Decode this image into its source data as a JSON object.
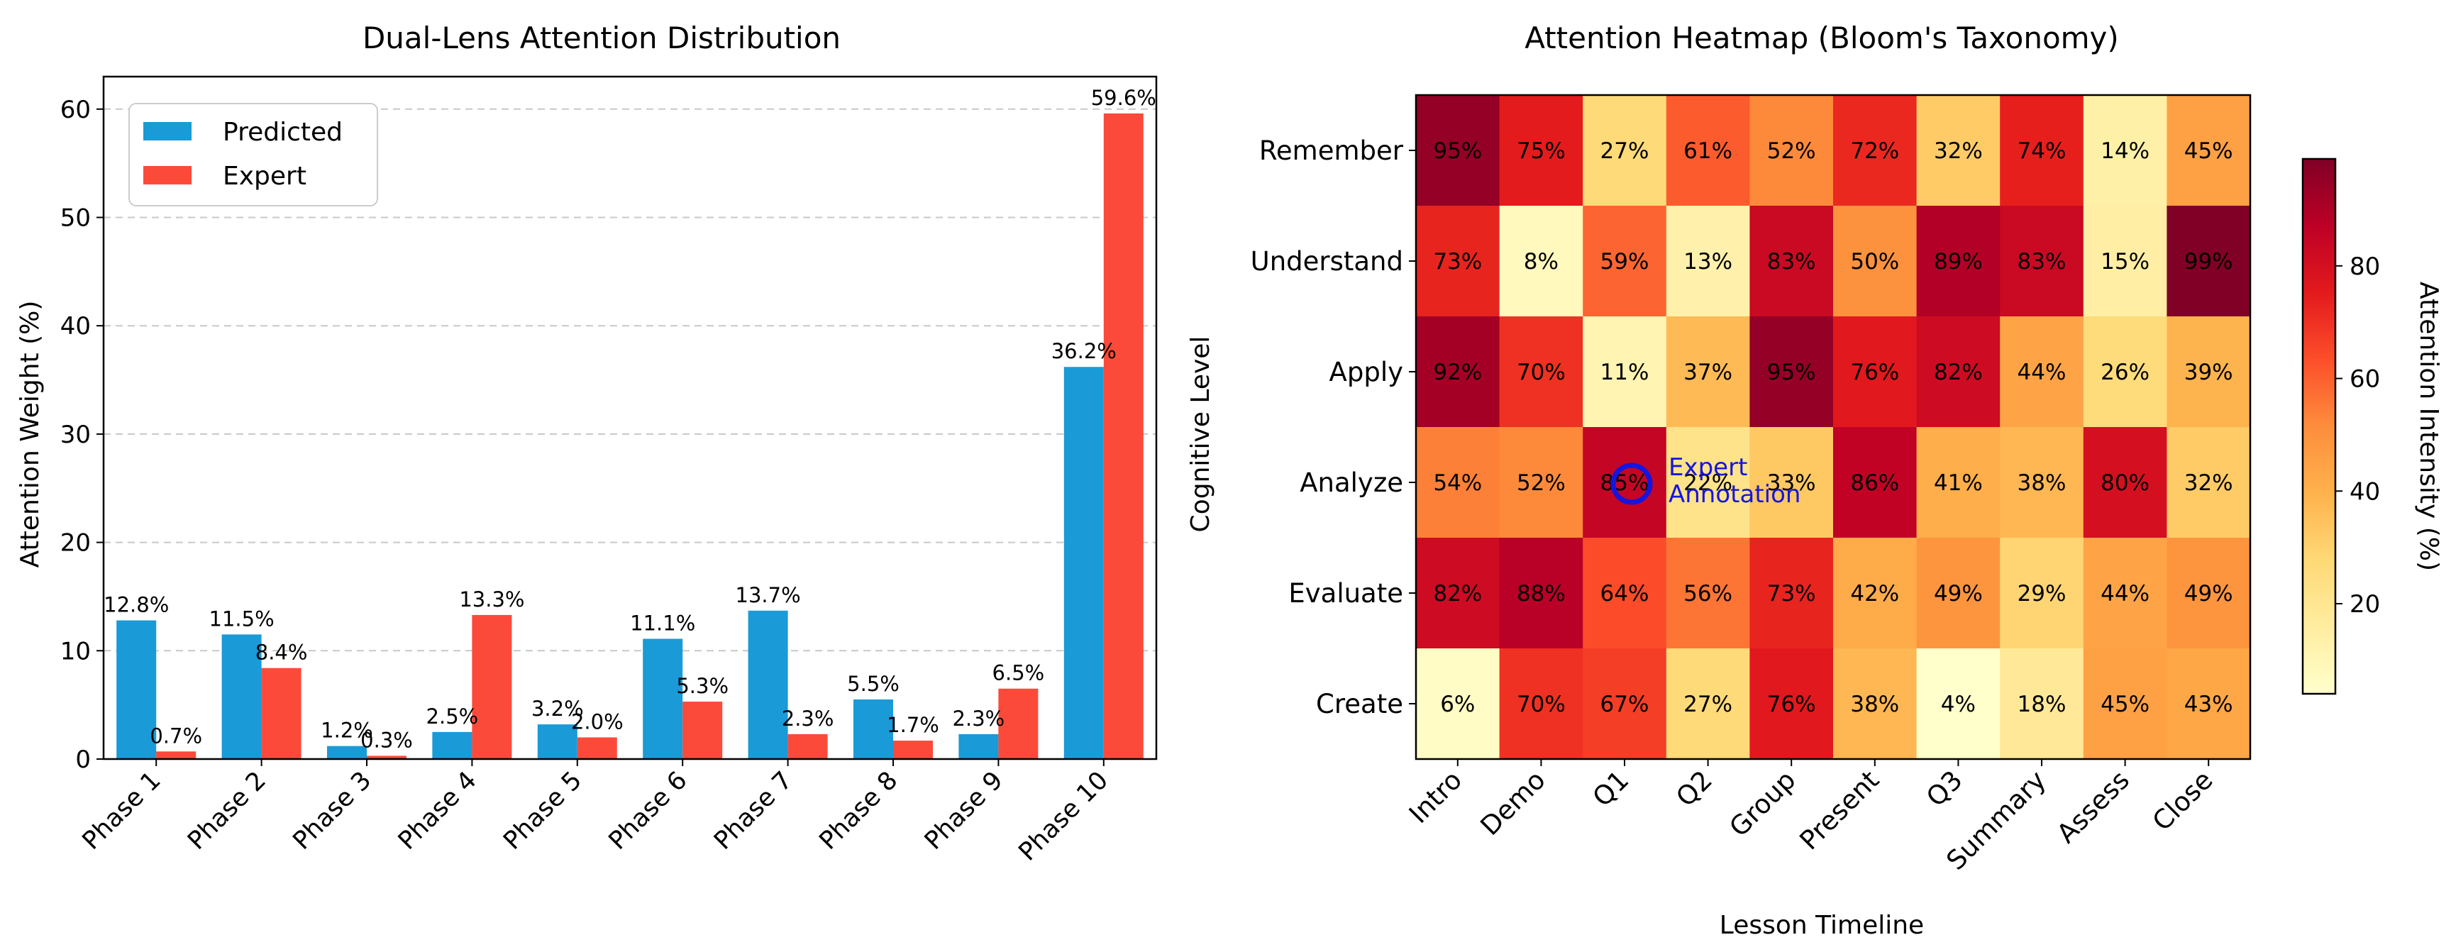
{
  "chart_data": [
    {
      "type": "bar",
      "title": "Dual-Lens Attention Distribution",
      "xlabel": "",
      "ylabel": "Attention Weight (%)",
      "ylim": [
        0,
        63
      ],
      "yticks": [
        "0",
        "10",
        "20",
        "30",
        "40",
        "50",
        "60"
      ],
      "grid": "horizontal dashed",
      "legend_position": "top-left",
      "categories": [
        "Phase 1",
        "Phase 2",
        "Phase 3",
        "Phase 4",
        "Phase 5",
        "Phase 6",
        "Phase 7",
        "Phase 8",
        "Phase 9",
        "Phase 10"
      ],
      "series": [
        {
          "name": "Predicted",
          "color": "#1a9ad6",
          "values": [
            12.8,
            11.5,
            1.2,
            2.5,
            3.2,
            11.1,
            13.7,
            5.5,
            2.3,
            36.2
          ],
          "labels": [
            "12.8%",
            "11.5%",
            "1.2%",
            "2.5%",
            "3.2%",
            "11.1%",
            "13.7%",
            "5.5%",
            "2.3%",
            "36.2%"
          ]
        },
        {
          "name": "Expert",
          "color": "#fb4a3a",
          "values": [
            0.7,
            8.4,
            0.3,
            13.3,
            2.0,
            5.3,
            2.3,
            1.7,
            6.5,
            59.6
          ],
          "labels": [
            "0.7%",
            "8.4%",
            "0.3%",
            "13.3%",
            "2.0%",
            "5.3%",
            "2.3%",
            "1.7%",
            "6.5%",
            "59.6%"
          ]
        }
      ]
    },
    {
      "type": "heatmap",
      "title": "Attention Heatmap (Bloom's Taxonomy)",
      "xlabel": "Lesson Timeline",
      "ylabel": "Cognitive Level",
      "colormap": "YlOrRd",
      "x": [
        "Intro",
        "Demo",
        "Q1",
        "Q2",
        "Group",
        "Present",
        "Q3",
        "Summary",
        "Assess",
        "Close"
      ],
      "y": [
        "Remember",
        "Understand",
        "Apply",
        "Analyze",
        "Evaluate",
        "Create"
      ],
      "values": [
        [
          95,
          75,
          27,
          61,
          52,
          72,
          32,
          74,
          14,
          45
        ],
        [
          73,
          8,
          59,
          13,
          83,
          50,
          89,
          83,
          15,
          99
        ],
        [
          92,
          70,
          11,
          37,
          95,
          76,
          82,
          44,
          26,
          39
        ],
        [
          54,
          52,
          85,
          22,
          33,
          86,
          41,
          38,
          80,
          32
        ],
        [
          82,
          88,
          64,
          56,
          73,
          42,
          49,
          29,
          44,
          49
        ],
        [
          6,
          70,
          67,
          27,
          76,
          38,
          4,
          18,
          45,
          43
        ]
      ],
      "colorbar": {
        "label": "Attention Intensity (%)",
        "ticks": [
          "20",
          "40",
          "60",
          "80"
        ],
        "range": [
          4,
          99
        ]
      },
      "annotation": {
        "text_line1": "Expert",
        "text_line2": "Annotation",
        "row": "Analyze",
        "column": "Q1",
        "color": "#1515e0"
      }
    }
  ]
}
